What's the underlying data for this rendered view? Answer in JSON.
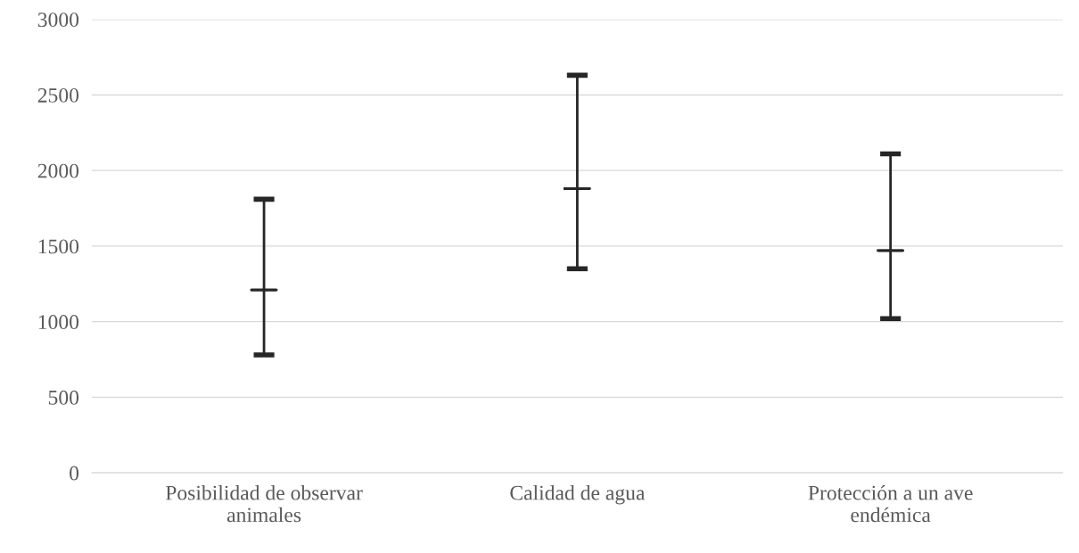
{
  "chart_data": {
    "type": "box",
    "categories": [
      "Posibilidad de observar\nanimales",
      "Calidad de agua",
      "Protección a un ave\nendémica"
    ],
    "boxes": [
      {
        "low": 780,
        "q1": 1210,
        "median": 1210,
        "q3": 1210,
        "high": 1810
      },
      {
        "low": 1350,
        "q1": 1880,
        "median": 1880,
        "q3": 1880,
        "high": 2630
      },
      {
        "low": 1020,
        "q1": 1470,
        "median": 1470,
        "q3": 1470,
        "high": 2110
      }
    ],
    "color": "#262626",
    "ylim": [
      0,
      3000
    ],
    "yticks": [
      0,
      500,
      1000,
      1500,
      2000,
      2500,
      3000
    ],
    "grid": "y"
  }
}
